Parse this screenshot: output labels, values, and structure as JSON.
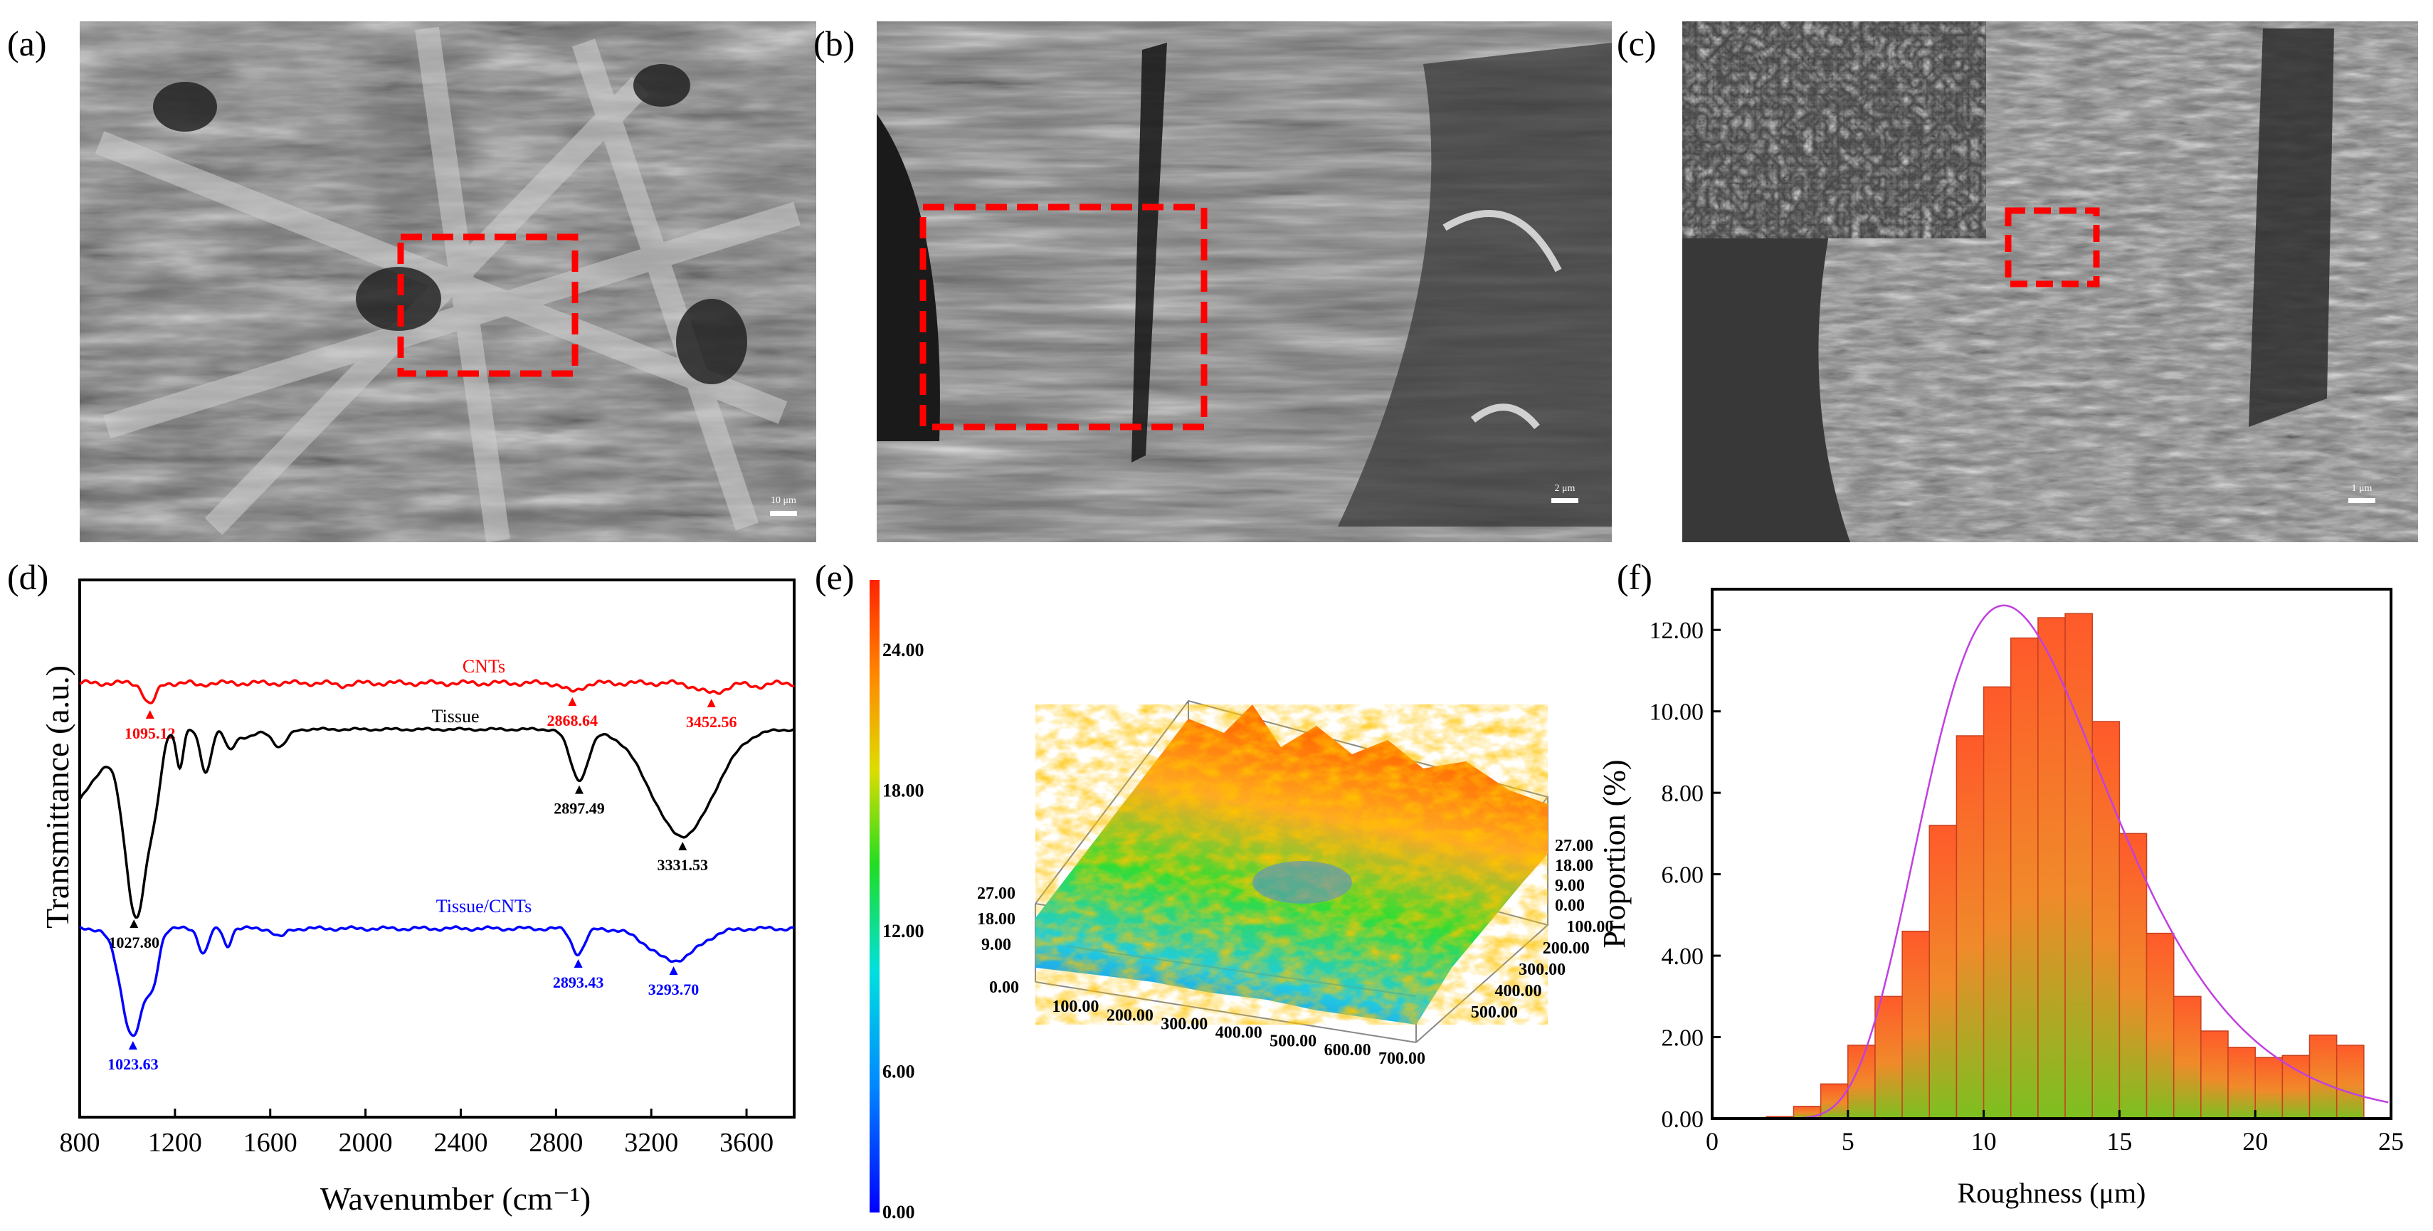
{
  "panels": {
    "a": {
      "label": "(a)",
      "scale_bar": "10 μm"
    },
    "b": {
      "label": "(b)",
      "scale_bar": "2 μm"
    },
    "c": {
      "label": "(c)",
      "scale_bar": "1 μm"
    },
    "d": {
      "label": "(d)"
    },
    "e": {
      "label": "(e)"
    },
    "f": {
      "label": "(f)"
    }
  },
  "colors": {
    "cnts": "#ff0000",
    "tissue": "#000000",
    "tissue_cnts": "#0000ff",
    "fit": "#c040e0"
  },
  "chart_data": [
    {
      "type": "line",
      "panel": "d",
      "title": "",
      "xlabel": "Wavenumber (cm⁻¹)",
      "ylabel": "Transmittance (a.u.)",
      "xlim": [
        800,
        3800
      ],
      "xticks": [
        "800",
        "1200",
        "1600",
        "2000",
        "2400",
        "2800",
        "3200",
        "3600"
      ],
      "series": [
        {
          "name": "CNTs",
          "color": "#ff0000",
          "peaks": [
            {
              "x": 1095.12,
              "label": "1095.12"
            },
            {
              "x": 2868.64,
              "label": "2868.64"
            },
            {
              "x": 3452.56,
              "label": "3452.56"
            }
          ]
        },
        {
          "name": "Tissue",
          "color": "#000000",
          "peaks": [
            {
              "x": 1027.8,
              "label": "1027.80"
            },
            {
              "x": 2897.49,
              "label": "2897.49"
            },
            {
              "x": 3331.53,
              "label": "3331.53"
            }
          ]
        },
        {
          "name": "Tissue/CNTs",
          "color": "#0000ff",
          "peaks": [
            {
              "x": 1023.63,
              "label": "1023.63"
            },
            {
              "x": 2893.43,
              "label": "2893.43"
            },
            {
              "x": 3293.7,
              "label": "3293.70"
            }
          ]
        }
      ]
    },
    {
      "type": "heatmap",
      "panel": "e",
      "title": "",
      "colorbar_ticks": [
        "0.00",
        "6.00",
        "12.00",
        "18.00",
        "24.00"
      ],
      "colorbar_range": [
        0,
        27
      ],
      "x_ticks": [
        "100.00",
        "200.00",
        "300.00",
        "400.00",
        "500.00",
        "600.00",
        "700.00"
      ],
      "y_ticks": [
        "100.00",
        "200.00",
        "300.00",
        "400.00",
        "500.00"
      ],
      "z_ticks_left": [
        "0.00",
        "9.00",
        "18.00",
        "27.00"
      ],
      "z_ticks_right": [
        "0.00",
        "9.00",
        "18.00",
        "27.00"
      ]
    },
    {
      "type": "bar",
      "panel": "f",
      "title": "",
      "xlabel": "Roughness (μm)",
      "ylabel": "Proportion (%)",
      "xlim": [
        0,
        25
      ],
      "ylim": [
        0,
        13
      ],
      "xticks": [
        "0",
        "5",
        "10",
        "15",
        "20",
        "25"
      ],
      "yticks": [
        "0.00",
        "2.00",
        "4.00",
        "6.00",
        "8.00",
        "10.00",
        "12.00"
      ],
      "bin_width": 1,
      "bin_starts": [
        2,
        3,
        4,
        5,
        6,
        7,
        8,
        9,
        10,
        11,
        12,
        13,
        14,
        15,
        16,
        17,
        18,
        19,
        20,
        21,
        22,
        23
      ],
      "values": [
        0.05,
        0.3,
        0.85,
        1.8,
        3.0,
        4.6,
        7.2,
        9.4,
        10.6,
        11.8,
        12.3,
        12.4,
        9.75,
        7.0,
        4.55,
        3.0,
        2.15,
        1.75,
        1.5,
        1.55,
        2.05,
        1.8
      ],
      "fit_curve": {
        "type": "lognormal",
        "peak_x": 10.7,
        "peak_y": 12.6
      }
    }
  ]
}
